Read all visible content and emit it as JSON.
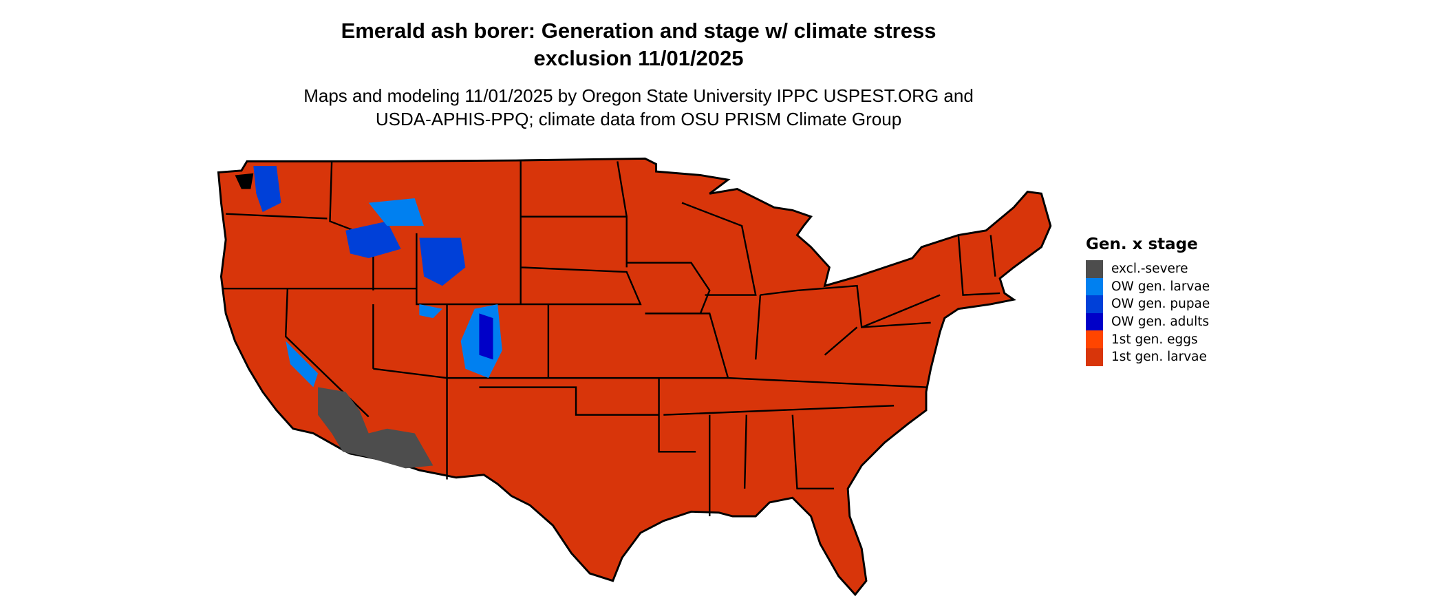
{
  "title": {
    "line1": "Emerald ash borer: Generation and stage w/ climate stress",
    "line2": "exclusion 11/01/2025"
  },
  "subtitle": {
    "line1": "Maps and modeling 11/01/2025 by Oregon State University IPPC USPEST.ORG and",
    "line2": "USDA-APHIS-PPQ; climate data from OSU PRISM Climate Group"
  },
  "legend": {
    "title": "Gen. x stage",
    "items": [
      {
        "label": "excl.-severe",
        "color": "#4d4d4d"
      },
      {
        "label": "OW gen. larvae",
        "color": "#0080f0"
      },
      {
        "label": "OW gen. pupae",
        "color": "#0040d8"
      },
      {
        "label": "OW gen. adults",
        "color": "#0000c8"
      },
      {
        "label": "1st gen. eggs",
        "color": "#ff4500"
      },
      {
        "label": "1st gen. larvae",
        "color": "#d8350a"
      }
    ]
  },
  "map": {
    "region": "Contiguous United States",
    "dominant_class": "1st gen. larvae",
    "border_color": "#000000"
  }
}
